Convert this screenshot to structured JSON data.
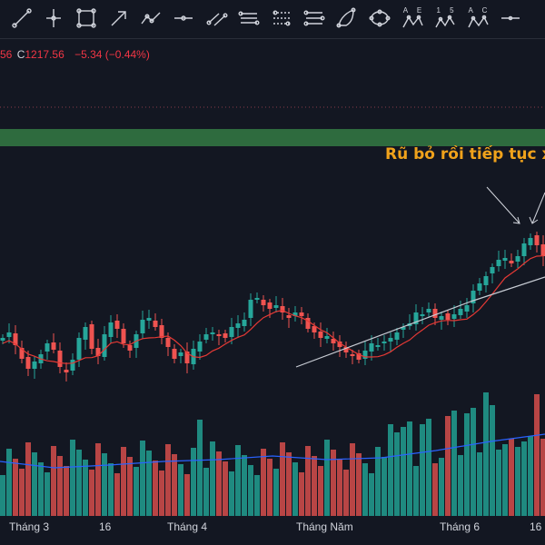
{
  "toolbar": {
    "tools": [
      {
        "icon": "trend-line-icon"
      },
      {
        "icon": "horizontal-ray-icon"
      },
      {
        "icon": "rectangle-icon"
      },
      {
        "icon": "arrow-icon"
      },
      {
        "icon": "path-icon"
      },
      {
        "icon": "horizontal-line-icon"
      },
      {
        "icon": "parallel-channel-icon"
      },
      {
        "icon": "pitchfork-icon"
      },
      {
        "icon": "fib-retracement-icon"
      },
      {
        "icon": "gann-fan-icon"
      },
      {
        "icon": "triangle-pattern-icon"
      },
      {
        "icon": "ellipse-icon"
      },
      {
        "icon": "abcd-pattern-icon",
        "label": "A E"
      },
      {
        "icon": "elliott-wave-icon",
        "label": "1 5"
      },
      {
        "icon": "abc-pattern-icon",
        "label": "A C"
      },
      {
        "icon": "cross-line-icon"
      }
    ]
  },
  "legend": {
    "open_tail": "56",
    "close_label": "C",
    "close": "1217.56",
    "change": "−5.34 (−0.44%)"
  },
  "annotation": "Rũ bỏ rồi tiếp tục x",
  "x_axis": {
    "labels": [
      "Tháng 3",
      "16",
      "Tháng 4",
      "Tháng Năm",
      "Tháng 6",
      "16"
    ]
  },
  "colors": {
    "background": "#131722",
    "up": "#26a69a",
    "down": "#ef5350",
    "volume_up": "#1f8a80",
    "volume_down": "#b84545",
    "ma_line": "#e53935",
    "volume_ma": "#2962ff",
    "zone": "#2e6b3e",
    "trendline": "#c8ccd4",
    "annotation": "#f0a21b"
  }
}
